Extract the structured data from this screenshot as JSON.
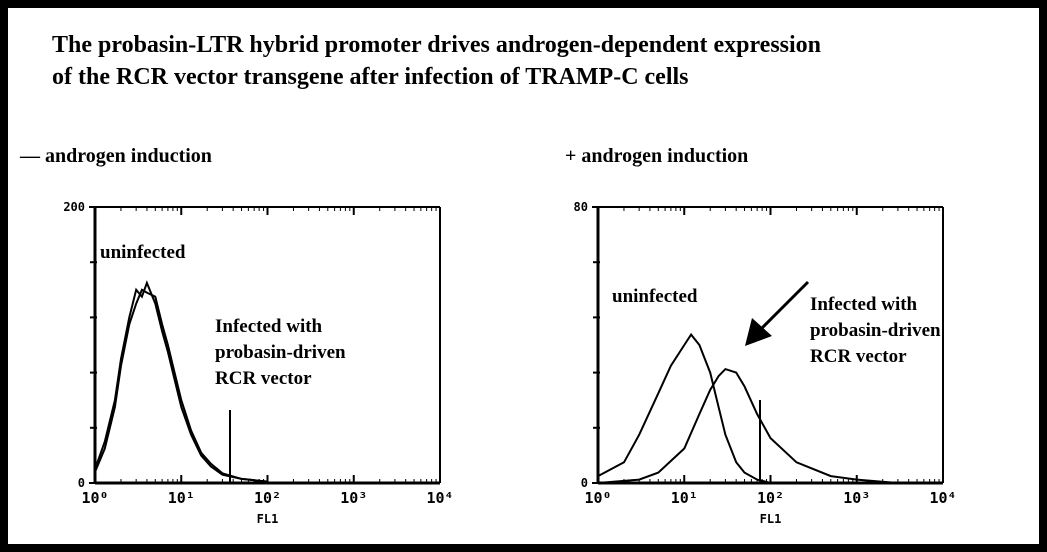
{
  "header": {
    "title_lines": [
      "The probasin-LTR hybrid promoter drives androgen-dependent expression",
      "of the RCR vector transgene after infection of TRAMP-C cells"
    ]
  },
  "chart_data": [
    {
      "type": "line",
      "subtitle": "— androgen induction",
      "x_label": "FL1",
      "xscale": "log",
      "xlim": [
        1,
        10000
      ],
      "xticks": [
        {
          "value": 1,
          "label": "10⁰"
        },
        {
          "value": 10,
          "label": "10¹"
        },
        {
          "value": 100,
          "label": "10²"
        },
        {
          "value": 1000,
          "label": "10³"
        },
        {
          "value": 10000,
          "label": "10⁴"
        }
      ],
      "ylim": [
        0,
        200
      ],
      "yticks": [
        0,
        200
      ],
      "yminor": [
        40,
        80,
        120,
        160
      ],
      "series": [
        {
          "color": "#000000",
          "x": [
            1,
            1.3,
            1.7,
            2,
            2.5,
            3,
            3.5,
            4,
            5,
            6,
            7,
            8,
            10,
            13,
            17,
            22,
            30,
            50,
            100
          ],
          "values": [
            10,
            30,
            60,
            90,
            120,
            140,
            135,
            145,
            130,
            110,
            95,
            80,
            55,
            35,
            20,
            12,
            6,
            3,
            1
          ]
        },
        {
          "color": "#000000",
          "x": [
            1,
            1.3,
            1.7,
            2,
            2.5,
            3,
            3.5,
            4,
            5,
            6,
            7,
            8,
            10,
            13,
            17,
            22,
            30,
            50,
            100
          ],
          "values": [
            8,
            25,
            55,
            85,
            115,
            130,
            140,
            138,
            135,
            115,
            100,
            85,
            60,
            38,
            22,
            14,
            7,
            3,
            1
          ]
        }
      ],
      "annotations": [
        "uninfected",
        "Infected with",
        "probasin-driven",
        "RCR vector"
      ]
    },
    {
      "type": "line",
      "subtitle": "+ androgen induction",
      "x_label": "FL1",
      "xscale": "log",
      "xlim": [
        1,
        10000
      ],
      "xticks": [
        {
          "value": 1,
          "label": "10⁰"
        },
        {
          "value": 10,
          "label": "10¹"
        },
        {
          "value": 100,
          "label": "10²"
        },
        {
          "value": 1000,
          "label": "10³"
        },
        {
          "value": 10000,
          "label": "10⁴"
        }
      ],
      "ylim": [
        0,
        80
      ],
      "yticks": [
        0,
        80
      ],
      "yminor": [
        16,
        32,
        48,
        64
      ],
      "series": [
        {
          "color": "#000000",
          "x": [
            1,
            2,
            3,
            5,
            7,
            10,
            12,
            15,
            20,
            25,
            30,
            40,
            50,
            70,
            100
          ],
          "values": [
            2,
            6,
            14,
            26,
            34,
            40,
            43,
            40,
            32,
            22,
            14,
            6,
            3,
            1,
            0
          ]
        },
        {
          "color": "#000000",
          "x": [
            1,
            3,
            5,
            10,
            15,
            20,
            25,
            30,
            40,
            50,
            70,
            100,
            200,
            500,
            1000,
            3000
          ],
          "values": [
            0,
            1,
            3,
            10,
            20,
            27,
            31,
            33,
            32,
            28,
            20,
            13,
            6,
            2,
            1,
            0
          ]
        }
      ],
      "annotations": [
        "uninfected",
        "Infected with",
        "probasin-driven",
        "RCR vector"
      ]
    }
  ]
}
